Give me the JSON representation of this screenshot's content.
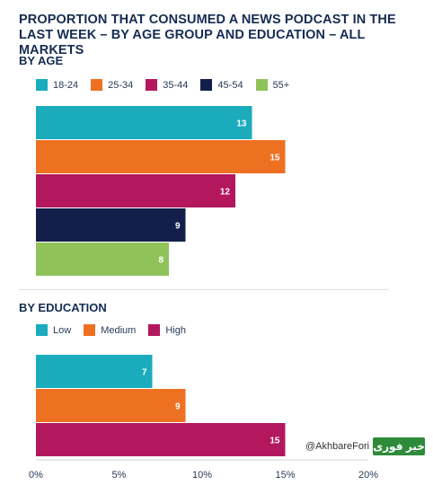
{
  "title": "PROPORTION THAT CONSUMED A NEWS PODCAST IN THE LAST WEEK – BY AGE GROUP AND EDUCATION – ALL MARKETS",
  "watermark": {
    "handle": "@AkhbareFori",
    "logo_text": "خبر فوری"
  },
  "chart_data": [
    {
      "type": "bar",
      "orientation": "horizontal",
      "title": "BY AGE",
      "categories": [
        "18-24",
        "25-34",
        "35-44",
        "45-54",
        "55+"
      ],
      "values": [
        13,
        15,
        12,
        9,
        8
      ],
      "colors": [
        "#1aacbc",
        "#ee7122",
        "#b3175e",
        "#131f4a",
        "#8fc35a"
      ],
      "legend_position": "top-left",
      "xlim": [
        0,
        20
      ]
    },
    {
      "type": "bar",
      "orientation": "horizontal",
      "title": "BY EDUCATION",
      "categories": [
        "Low",
        "Medium",
        "High"
      ],
      "values": [
        7,
        9,
        15
      ],
      "colors": [
        "#1aacbc",
        "#ee7122",
        "#b3175e"
      ],
      "legend_position": "top-left",
      "xlim": [
        0,
        20
      ],
      "xticks": [
        "0%",
        "5%",
        "10%",
        "15%",
        "20%"
      ]
    }
  ]
}
